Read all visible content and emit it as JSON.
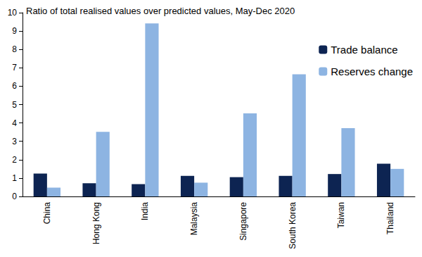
{
  "chart_data": {
    "type": "bar",
    "title": "Ratio of total realised values over predicted values, May-Dec 2020",
    "categories": [
      "China",
      "Hong Kong",
      "India",
      "Malaysia",
      "Singapore",
      "South Korea",
      "Taiwan",
      "Thailand"
    ],
    "series": [
      {
        "name": "Trade balance",
        "color": "#0d2452",
        "values": [
          1.25,
          0.72,
          0.67,
          1.12,
          1.05,
          1.12,
          1.22,
          1.78
        ]
      },
      {
        "name": "Reserves change",
        "color": "#8db4e2",
        "values": [
          0.48,
          3.52,
          9.42,
          0.75,
          4.52,
          6.65,
          3.72,
          1.5
        ]
      }
    ],
    "ylim": [
      0,
      10
    ],
    "yticks": [
      0,
      1,
      2,
      3,
      4,
      5,
      6,
      7,
      8,
      9,
      10
    ],
    "grid": false,
    "legend": "upper right"
  }
}
